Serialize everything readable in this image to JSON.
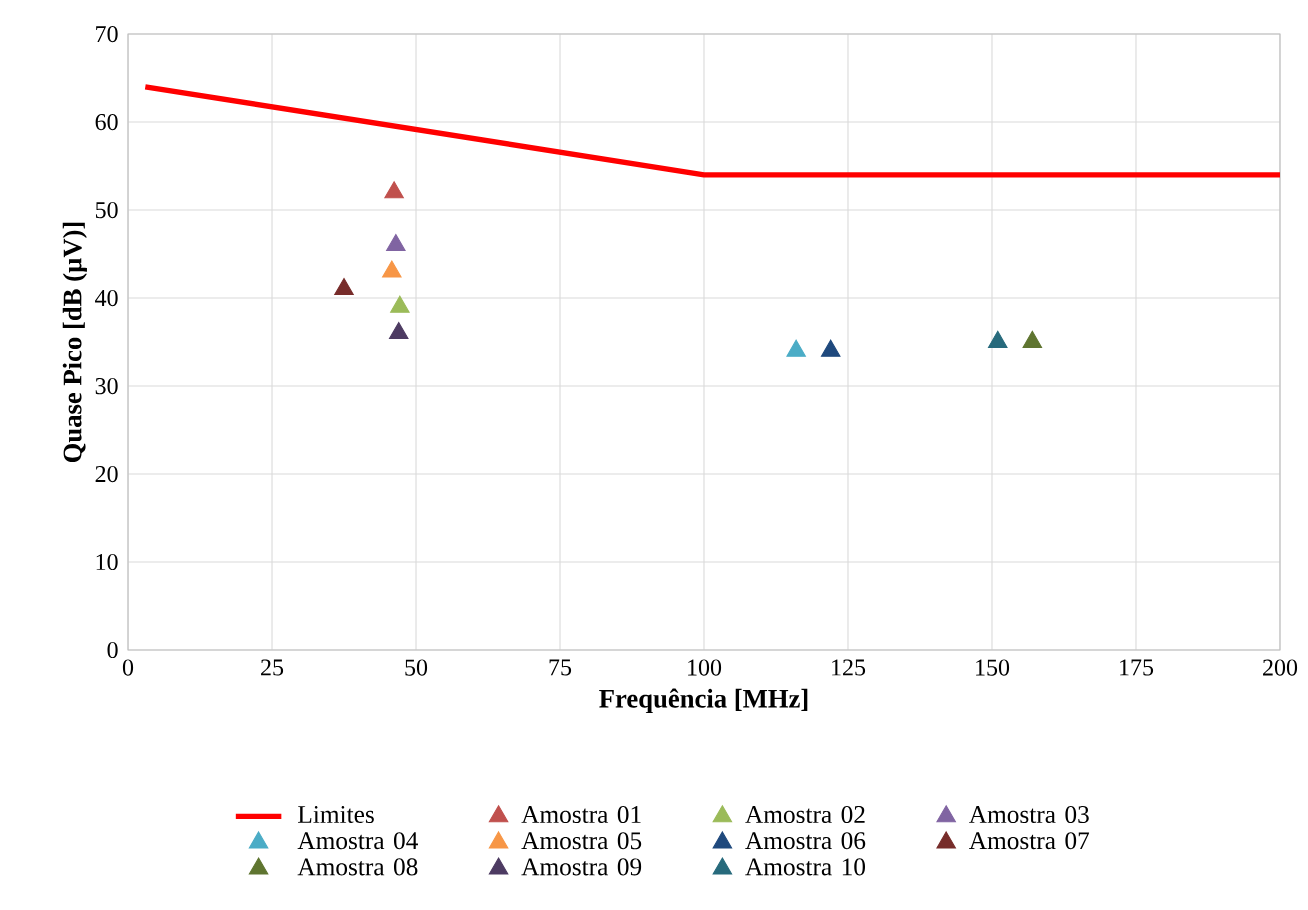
{
  "chart_data": {
    "type": "scatter",
    "xlabel": "Frequência [MHz]",
    "ylabel": "Quase Pico [dB (µV)]",
    "xlim": [
      0,
      200
    ],
    "xticks": [
      0,
      25,
      50,
      75,
      100,
      125,
      150,
      175,
      200
    ],
    "ylim": [
      0,
      70
    ],
    "yticks": [
      0,
      10,
      20,
      30,
      40,
      50,
      60,
      70
    ],
    "grid": true,
    "legend": "bottom",
    "marker": "triangle",
    "series": [
      {
        "name": "Limites",
        "type": "line",
        "marker": "none",
        "color": "#ff0000",
        "x": [
          3,
          100,
          200
        ],
        "values": [
          64,
          54,
          54
        ]
      },
      {
        "name": "Amostra 01",
        "color": "#c0504d",
        "x": [
          46.2
        ],
        "values": [
          52
        ]
      },
      {
        "name": "Amostra 02",
        "color": "#9bbb59",
        "x": [
          47.2
        ],
        "values": [
          39
        ]
      },
      {
        "name": "Amostra 03",
        "color": "#8064a2",
        "x": [
          46.5
        ],
        "values": [
          46
        ]
      },
      {
        "name": "Amostra 04",
        "color": "#4bacc6",
        "x": [
          116
        ],
        "values": [
          34
        ]
      },
      {
        "name": "Amostra 05",
        "color": "#f79646",
        "x": [
          45.8
        ],
        "values": [
          43
        ]
      },
      {
        "name": "Amostra 06",
        "color": "#1f497d",
        "x": [
          122
        ],
        "values": [
          34
        ]
      },
      {
        "name": "Amostra 07",
        "color": "#772c2a",
        "x": [
          37.5
        ],
        "values": [
          41
        ]
      },
      {
        "name": "Amostra 08",
        "color": "#5f7530",
        "x": [
          157
        ],
        "values": [
          35
        ]
      },
      {
        "name": "Amostra 09",
        "color": "#4d3b62",
        "x": [
          47
        ],
        "values": [
          36
        ]
      },
      {
        "name": "Amostra 10",
        "color": "#276a7c",
        "x": [
          151
        ],
        "values": [
          35
        ]
      }
    ]
  }
}
